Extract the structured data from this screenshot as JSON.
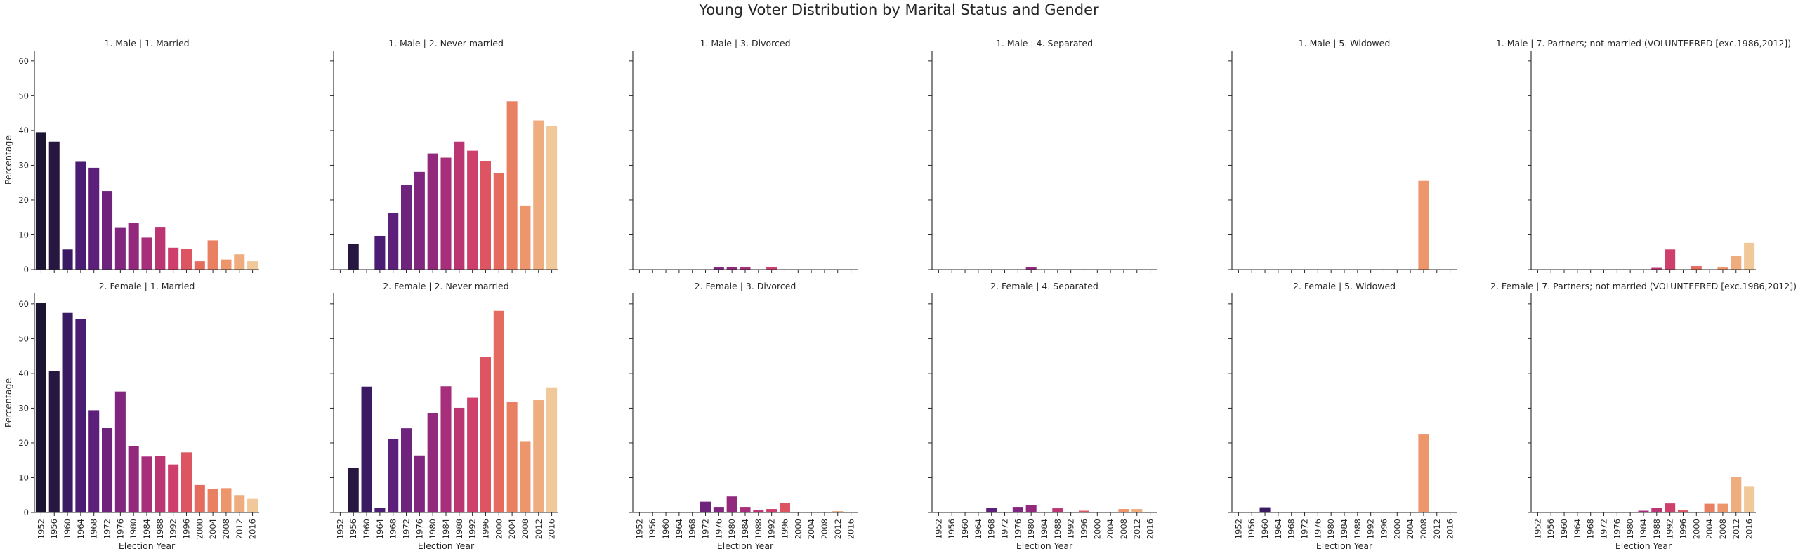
{
  "figure": {
    "title": "Young Voter Distribution by Marital Status and Gender"
  },
  "chart_data": {
    "type": "bar",
    "title": "Young Voter Distribution by Marital Status and Gender",
    "xlabel": "Election Year",
    "ylabel": "Percentage",
    "ylim": [
      0,
      63
    ],
    "yticks": [
      0,
      10,
      20,
      30,
      40,
      50,
      60
    ],
    "grid": false,
    "categories": [
      "1952",
      "1956",
      "1960",
      "1964",
      "1968",
      "1972",
      "1976",
      "1980",
      "1984",
      "1988",
      "1992",
      "1996",
      "2000",
      "2004",
      "2008",
      "2012",
      "2016"
    ],
    "palette": [
      "#1c1433",
      "#271640",
      "#3a1a62",
      "#4b1c74",
      "#5c1f7a",
      "#6e237d",
      "#80267e",
      "#93297d",
      "#a72e7a",
      "#bb3573",
      "#ce406b",
      "#dd5563",
      "#e56b5f",
      "#ea8062",
      "#ed966b",
      "#efac7e",
      "#f1c899"
    ],
    "panels": [
      {
        "title": "1. Male | 1. Married",
        "values": [
          39.5,
          36.8,
          5.8,
          31.0,
          29.3,
          22.6,
          12.0,
          13.4,
          9.2,
          12.1,
          6.3,
          6.0,
          2.4,
          8.4,
          2.9,
          4.4,
          2.4
        ]
      },
      {
        "title": "1. Male | 2. Never married",
        "values": [
          0,
          7.3,
          0,
          9.7,
          16.3,
          24.4,
          28.1,
          33.4,
          32.2,
          36.8,
          34.2,
          31.2,
          27.7,
          48.4,
          18.4,
          42.9,
          41.4
        ]
      },
      {
        "title": "1. Male | 3. Divorced",
        "values": [
          0,
          0,
          0,
          0,
          0,
          0,
          0.6,
          0.8,
          0.6,
          0,
          0.7,
          0,
          0,
          0,
          0,
          0,
          0
        ]
      },
      {
        "title": "1. Male | 4. Separated",
        "values": [
          0,
          0,
          0,
          0,
          0,
          0,
          0,
          0.8,
          0,
          0,
          0,
          0,
          0,
          0,
          0,
          0,
          0
        ]
      },
      {
        "title": "1. Male | 5. Widowed",
        "values": [
          0,
          0,
          0,
          0,
          0,
          0,
          0,
          0,
          0,
          0,
          0,
          0,
          0,
          0,
          25.5,
          0,
          0
        ]
      },
      {
        "title": "1. Male | 7. Partners; not married (VOLUNTEERED [exc.1986,2012])",
        "values": [
          0,
          0,
          0,
          0,
          0,
          0,
          0,
          0,
          0,
          0.5,
          5.8,
          0,
          1.0,
          0,
          0.6,
          3.9,
          7.7
        ]
      },
      {
        "title": "2. Female | 1. Married",
        "values": [
          60.3,
          40.6,
          57.4,
          55.6,
          29.4,
          24.3,
          34.8,
          19.1,
          16.1,
          16.2,
          13.8,
          17.3,
          7.9,
          6.7,
          7.0,
          5.0,
          3.9
        ]
      },
      {
        "title": "2. Female | 2. Never married",
        "values": [
          0,
          12.8,
          36.2,
          1.4,
          21.1,
          24.2,
          16.4,
          28.6,
          36.3,
          30.1,
          33.0,
          44.8,
          58.0,
          31.8,
          20.5,
          32.3,
          36.0
        ]
      },
      {
        "title": "2. Female | 3. Divorced",
        "values": [
          0,
          0,
          0,
          0,
          0,
          3.1,
          1.6,
          4.6,
          1.6,
          0.6,
          1.0,
          2.7,
          0,
          0,
          0,
          0.4,
          0
        ]
      },
      {
        "title": "2. Female | 4. Separated",
        "values": [
          0,
          0,
          0,
          0,
          1.4,
          0,
          1.6,
          2.1,
          0,
          1.2,
          0,
          0.5,
          0,
          0,
          1.0,
          1.0,
          0
        ]
      },
      {
        "title": "2. Female | 5. Widowed",
        "values": [
          0,
          0,
          1.5,
          0,
          0,
          0,
          0,
          0,
          0,
          0,
          0,
          0,
          0,
          0,
          22.6,
          0,
          0
        ]
      },
      {
        "title": "2. Female | 7. Partners; not married (VOLUNTEERED [exc.1986,2012])",
        "values": [
          0,
          0,
          0,
          0,
          0,
          0,
          0,
          0,
          0.5,
          1.3,
          2.6,
          0.6,
          0,
          2.5,
          2.5,
          10.3,
          7.6
        ]
      }
    ]
  }
}
